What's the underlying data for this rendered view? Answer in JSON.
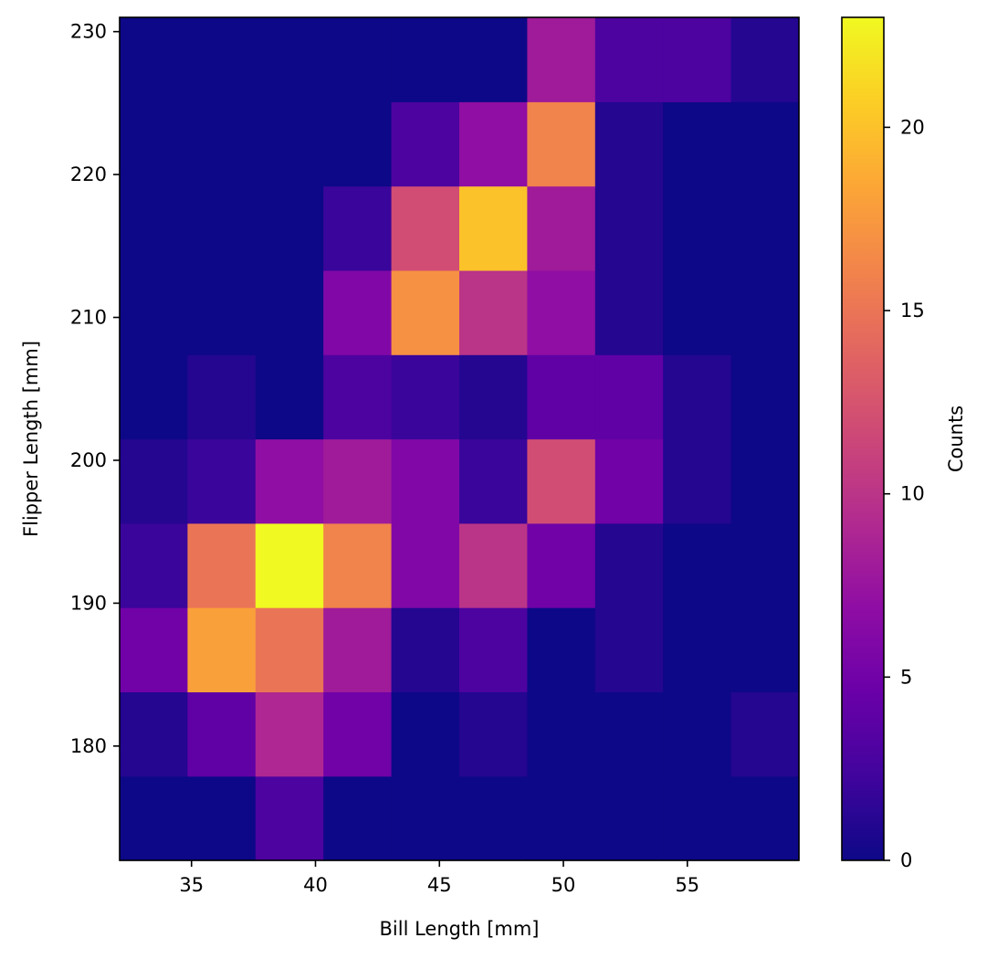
{
  "chart_data": {
    "type": "heatmap",
    "title": "",
    "xlabel": "Bill Length [mm]",
    "ylabel": "Flipper Length [mm]",
    "x_ticks": [
      35,
      40,
      45,
      50,
      55
    ],
    "y_ticks": [
      180,
      190,
      200,
      210,
      220,
      230
    ],
    "x_bin_edges": [
      32.1,
      34.84,
      37.58,
      40.32,
      43.06,
      45.8,
      48.54,
      51.28,
      54.02,
      56.76,
      59.5
    ],
    "y_bin_edges": [
      172,
      177.9,
      183.8,
      189.7,
      195.6,
      201.5,
      207.4,
      213.3,
      219.2,
      225.1,
      231
    ],
    "xlim": [
      32.1,
      59.5
    ],
    "ylim": [
      172,
      231
    ],
    "counts": [
      [
        0,
        0,
        3,
        0,
        0,
        0,
        0,
        0,
        0,
        0
      ],
      [
        1,
        4,
        9,
        5,
        0,
        1,
        0,
        0,
        0,
        1
      ],
      [
        5,
        18,
        15,
        8,
        1,
        3,
        0,
        1,
        0,
        0
      ],
      [
        2,
        15,
        23,
        16,
        6,
        10,
        5,
        1,
        0,
        0
      ],
      [
        1,
        2,
        7,
        8,
        6,
        2,
        12,
        5,
        1,
        0
      ],
      [
        0,
        1,
        0,
        3,
        2,
        1,
        4,
        4,
        1,
        0
      ],
      [
        0,
        0,
        0,
        6,
        17,
        10,
        7,
        1,
        0,
        0
      ],
      [
        0,
        0,
        0,
        2,
        12,
        20,
        8,
        1,
        0,
        0
      ],
      [
        0,
        0,
        0,
        0,
        3,
        7,
        16,
        1,
        0,
        0
      ],
      [
        0,
        0,
        0,
        0,
        0,
        0,
        8,
        3,
        3,
        1
      ]
    ],
    "colormap": "plasma",
    "color_range": [
      0,
      23
    ],
    "colorbar": {
      "label": "Counts",
      "ticks": [
        0,
        5,
        10,
        15,
        20
      ]
    },
    "grid": false
  }
}
